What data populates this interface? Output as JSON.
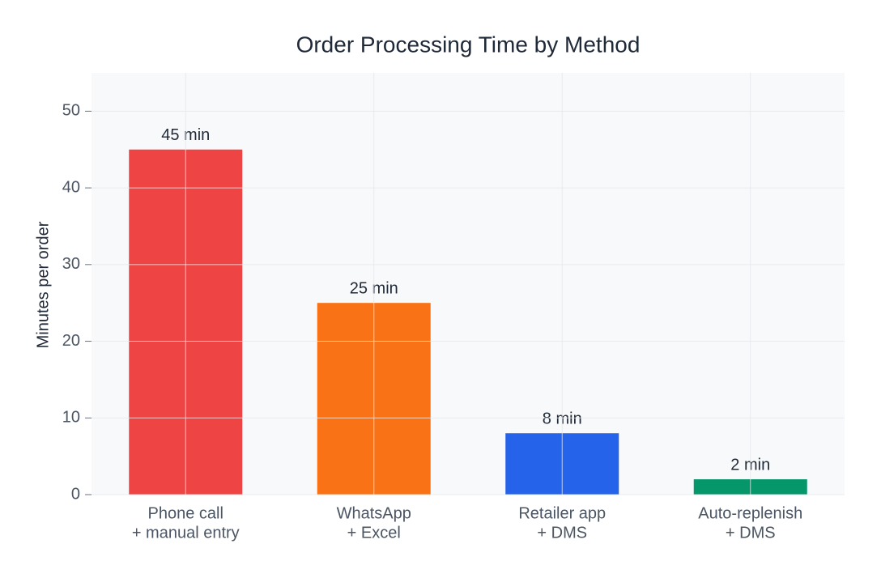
{
  "chart_data": {
    "type": "bar",
    "title": "Order Processing Time by Method",
    "y_label": "Minutes per order",
    "categories": [
      [
        "Phone call",
        "+ manual entry"
      ],
      [
        "WhatsApp",
        "+ Excel"
      ],
      [
        "Retailer app",
        "+ DMS"
      ],
      [
        "Auto-replenish",
        "+ DMS"
      ]
    ],
    "values": [
      45,
      25,
      8,
      2
    ],
    "value_labels": [
      "45 min",
      "25 min",
      "8 min",
      "2 min"
    ],
    "colors": [
      "#ef4444",
      "#f97316",
      "#2563eb",
      "#059669"
    ],
    "ylim": [
      0,
      55
    ],
    "yticks": [
      0,
      10,
      20,
      30,
      40,
      50
    ],
    "grid": true
  }
}
